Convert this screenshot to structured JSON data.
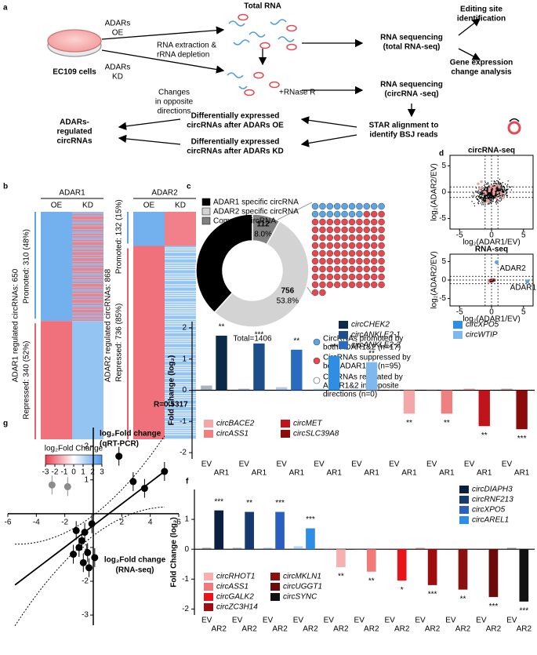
{
  "panel_labels": [
    "a",
    "b",
    "c",
    "d",
    "e",
    "f",
    "g"
  ],
  "workflow": [
    [
      "ADARs",
      "OE"
    ],
    [
      "ADARs",
      "KD"
    ],
    [
      "EC109 cells"
    ],
    [
      "RNA extraction &",
      "rRNA depletion"
    ],
    [
      "Total RNA"
    ],
    [
      "+RNase R"
    ],
    [
      "RNA sequencing",
      "(total RNA-seq)"
    ],
    [
      "RNA sequencing",
      "(circRNA -seq)"
    ],
    [
      "Editing site",
      "identification"
    ],
    [
      "Gene expression",
      "change analysis"
    ],
    [
      "STAR alignment to",
      "identify BSJ reads"
    ],
    [
      "Differentially expressed",
      "circRNAs after ADARs OE"
    ],
    [
      "Differentially expressed",
      "circRNAs after ADARs KD"
    ],
    [
      "Changes",
      "in opposite",
      "directions"
    ],
    [
      "ADARs-",
      "regulated",
      "circRNAs"
    ]
  ],
  "heatmaps": {
    "panels": [
      {
        "title": "ADAR1",
        "columns": [
          "OE",
          "KD"
        ],
        "total": "ADAR1 regulated circRNAs: 650",
        "promoted": "Promoted: 310 (48%)",
        "repressed": "Repressed: 340 (52%)"
      },
      {
        "title": "ADAR2",
        "columns": [
          "OE",
          "KD"
        ],
        "total": "ADAR2 regulated circRNAs: 868",
        "promoted": "Promoted: 132 (15%)",
        "repressed": "Repressed: 736 (85%)"
      }
    ],
    "legend_title": "log₂Fold Change",
    "legend_ticks": [
      -3,
      -2,
      -1,
      0,
      1,
      2,
      3
    ]
  },
  "chart_data": [
    {
      "type": "pie",
      "categories": [
        "ADAR1 specific circRNA",
        "ADAR2 specific circRNA",
        "Common circRNA"
      ],
      "values": [
        538,
        756,
        112
      ],
      "percent_labels": [
        "38.3%",
        "53.8%",
        "8.0%"
      ],
      "colors": [
        "#000000",
        "#d3d3d3",
        "#808080"
      ],
      "total_label": "Total=1406",
      "dots": [
        {
          "lines": [
            "CircRNAs promoted by",
            "both ADAR1&2 (n=17)"
          ],
          "n": 17,
          "color": "#5aa5e6"
        },
        {
          "lines": [
            "CircRNAs suppressed by",
            "both ADAR1&2 (n=95)"
          ],
          "n": 95,
          "color": "#e8474f"
        },
        {
          "lines": [
            "CircRNAs regulated by",
            "ADAR1&2 in opposite",
            "directions (n=0)"
          ],
          "n": 0,
          "color": "#ffffff"
        }
      ]
    },
    {
      "type": "scatter",
      "title": "circRNA-seq",
      "xlabel": "log₂(ADAR1/EV)",
      "ylabel": "log₂(ADAR2/EV)",
      "xlim": [
        -6.5,
        6.5
      ],
      "ylim": [
        -7,
        7
      ],
      "xticks": [
        -5,
        0,
        5
      ],
      "yticks": [
        -5,
        0,
        5
      ]
    },
    {
      "type": "scatter",
      "title": "RNA-seq",
      "xlabel": "log₂(ADAR1/EV)",
      "ylabel": "log₂(ADAR2/EV)",
      "xlim": [
        -6.5,
        6.5
      ],
      "ylim": [
        -7,
        7
      ],
      "xticks": [
        -5,
        0,
        5
      ],
      "yticks": [
        -5,
        0,
        5
      ],
      "x": [
        0.8,
        5.6
      ],
      "values": [
        4.8,
        -0.4
      ],
      "annotations": [
        "ADAR2",
        "ADAR1"
      ],
      "color": "#5aa5e6"
    },
    {
      "type": "bar",
      "ylabel": "Fold Change (log₂)",
      "categories": [
        "EV",
        "AR1"
      ],
      "ylim": [
        -2.2,
        2.2
      ],
      "yticks": [
        -2,
        -1,
        0,
        1,
        2
      ],
      "series": [
        {
          "name": "circCHEK2",
          "color": "#0b2a4a",
          "values": [
            0.15,
            1.75
          ],
          "significance": "**"
        },
        {
          "name": "circANKLE2-1",
          "color": "#1c4e8a",
          "values": [
            0.05,
            1.5
          ],
          "significance": "***"
        },
        {
          "name": "circANKLE2-2",
          "color": "#2a6bbf",
          "values": [
            0.1,
            1.3
          ],
          "significance": "**"
        },
        {
          "name": "circXPO5",
          "color": "#2f8de4",
          "values": [
            0.05,
            1.1
          ],
          "significance": "***"
        },
        {
          "name": "circWTIP",
          "color": "#7fb8ec",
          "values": [
            0.05,
            0.9
          ],
          "significance": "**"
        },
        {
          "name": "circBACE2",
          "color": "#f4a7a7",
          "values": [
            0,
            -0.75
          ],
          "significance": "**"
        },
        {
          "name": "circASS1",
          "color": "#ef8080",
          "values": [
            0,
            -0.75
          ],
          "significance": "**"
        },
        {
          "name": "circMET",
          "color": "#c0141a",
          "values": [
            0.05,
            -1.15
          ],
          "significance": "**"
        },
        {
          "name": "circSLC39A8",
          "color": "#8b0a0a",
          "values": [
            0.05,
            -1.25
          ],
          "significance": "***"
        }
      ]
    },
    {
      "type": "bar",
      "ylabel": "Fold Change (log₂)",
      "categories": [
        "EV",
        "AR2"
      ],
      "ylim": [
        -2.2,
        2
      ],
      "yticks": [
        -2,
        -1,
        0,
        1
      ],
      "series": [
        {
          "name": "circDIAPH3",
          "color": "#0b2040",
          "values": [
            0.05,
            1.3
          ],
          "significance": "***"
        },
        {
          "name": "circRNF213",
          "color": "#163a6e",
          "values": [
            0.05,
            1.25
          ],
          "significance": "**"
        },
        {
          "name": "circXPO5",
          "color": "#2a5fc0",
          "values": [
            0.05,
            1.25
          ],
          "significance": "***"
        },
        {
          "name": "circAREL1",
          "color": "#2f8de4",
          "values": [
            0.1,
            0.7
          ],
          "significance": "***"
        },
        {
          "name": "circRHOT1",
          "color": "#f6b0b0",
          "values": [
            0.05,
            -0.6
          ],
          "significance": "**"
        },
        {
          "name": "circASS1",
          "color": "#f07a7a",
          "values": [
            0,
            -0.75
          ],
          "significance": "**"
        },
        {
          "name": "circGALK2",
          "color": "#e8141a",
          "values": [
            0,
            -1.05
          ],
          "significance": "*"
        },
        {
          "name": "circZC3H14",
          "color": "#a00d10",
          "values": [
            0.05,
            -1.2
          ],
          "significance": "***"
        },
        {
          "name": "circMKLN1",
          "color": "#8b1010",
          "values": [
            0,
            -1.35
          ],
          "significance": "**"
        },
        {
          "name": "circUGGT1",
          "color": "#6b0a0a",
          "values": [
            0,
            -1.6
          ],
          "significance": "***"
        },
        {
          "name": "circSYNC",
          "color": "#111111",
          "values": [
            0.05,
            -1.75
          ],
          "significance": "***"
        }
      ]
    },
    {
      "type": "scatter",
      "xlabel": [
        "log₂Fold change",
        "(RNA-seq)"
      ],
      "ylabel": [
        "log₂Fold change",
        "(qRT-PCR)"
      ],
      "annotation": "R=0.5317",
      "xlim": [
        -6,
        6
      ],
      "ylim": [
        -3.3,
        2.55
      ],
      "xticks": [
        -6,
        -4,
        -2,
        2,
        4,
        6
      ],
      "yticks": [
        2,
        1,
        -1,
        -2,
        -3
      ],
      "x": [
        5.0,
        3.6,
        2.8,
        1.8,
        -0.1,
        -0.6,
        -0.8,
        -1.2,
        -1.0,
        -0.4,
        -0.7,
        0.1,
        -0.3,
        -1.4,
        -2.9,
        -1.8
      ],
      "values": [
        1.25,
        0.75,
        0.95,
        1.7,
        -0.3,
        -0.55,
        -0.8,
        -0.5,
        -1.0,
        -1.15,
        -1.45,
        -1.3,
        -1.6,
        -1.2,
        0.85,
        0.8
      ],
      "point_colors": [
        "#000000",
        "#000000",
        "#000000",
        "#000000",
        "#000000",
        "#000000",
        "#000000",
        "#000000",
        "#000000",
        "#000000",
        "#000000",
        "#000000",
        "#000000",
        "#000000",
        "#8c8c8c",
        "#8c8c8c"
      ]
    }
  ]
}
